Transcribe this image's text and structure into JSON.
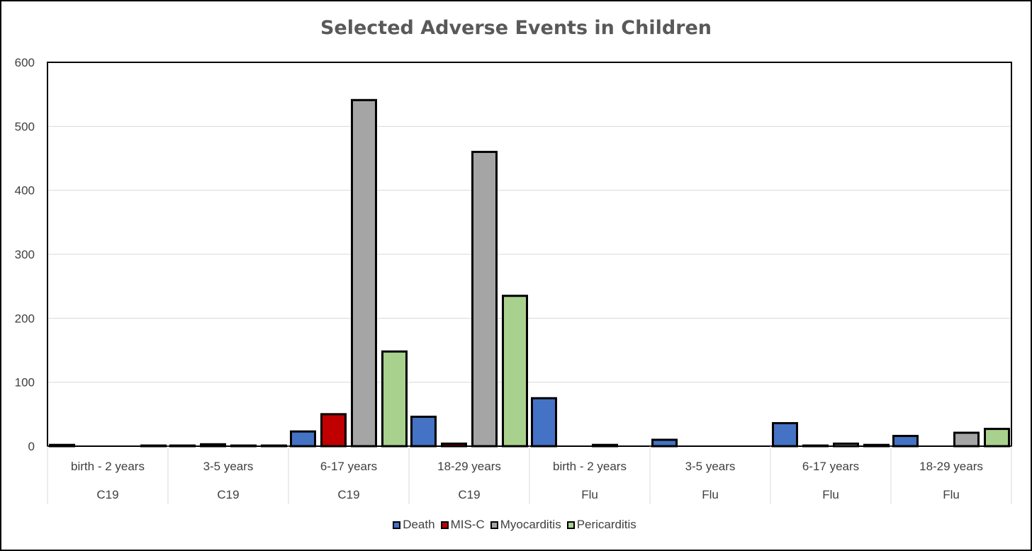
{
  "chart_data": {
    "type": "bar",
    "title": "Selected Adverse Events in Children",
    "xlabel": "",
    "ylabel": "",
    "ylim": [
      0,
      600
    ],
    "yticks": [
      0,
      100,
      200,
      300,
      400,
      500,
      600
    ],
    "grid": true,
    "legend_position": "bottom",
    "categories": [
      {
        "age": "birth - 2 years",
        "vaccine": "C19"
      },
      {
        "age": "3-5 years",
        "vaccine": "C19"
      },
      {
        "age": "6-17 years",
        "vaccine": "C19"
      },
      {
        "age": "18-29 years",
        "vaccine": "C19"
      },
      {
        "age": "birth - 2 years",
        "vaccine": "Flu"
      },
      {
        "age": "3-5 years",
        "vaccine": "Flu"
      },
      {
        "age": "6-17 years",
        "vaccine": "Flu"
      },
      {
        "age": "18-29 years",
        "vaccine": "Flu"
      }
    ],
    "series": [
      {
        "name": "Death",
        "color": "#4472c4",
        "values": [
          2,
          1,
          23,
          46,
          75,
          10,
          36,
          16
        ]
      },
      {
        "name": "MIS-C",
        "color": "#c00000",
        "values": [
          0,
          3,
          50,
          4,
          0,
          0,
          1,
          0
        ]
      },
      {
        "name": "Myocarditis",
        "color": "#a5a5a5",
        "values": [
          0,
          1,
          541,
          460,
          2,
          0,
          4,
          21
        ]
      },
      {
        "name": "Pericarditis",
        "color": "#a9d18e",
        "values": [
          1,
          1,
          148,
          235,
          0,
          0,
          2,
          27
        ]
      }
    ]
  }
}
